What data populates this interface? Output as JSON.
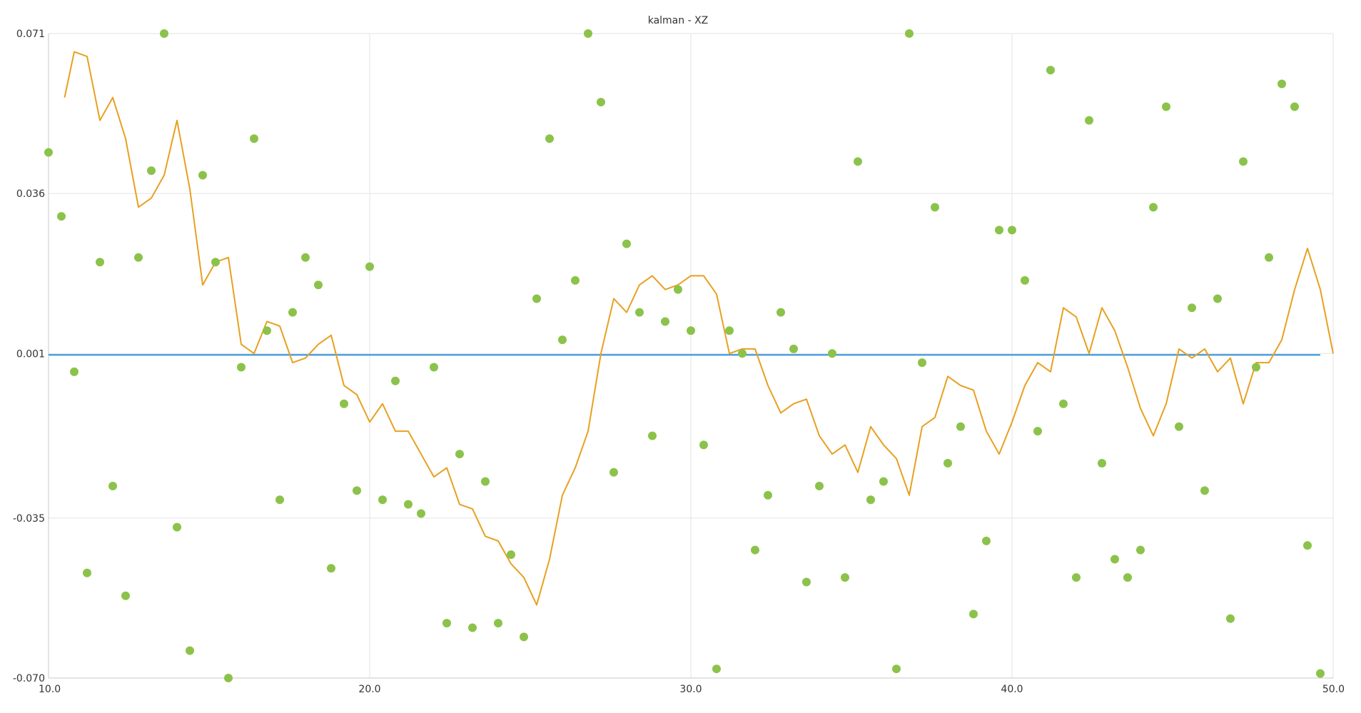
{
  "chart_data": {
    "type": "scatter",
    "title": "kalman - XZ",
    "xlabel": "",
    "ylabel": "",
    "xlim": [
      10.0,
      50.0
    ],
    "ylim": [
      -0.07,
      0.071
    ],
    "x_ticks": [
      10.0,
      20.0,
      30.0,
      40.0,
      50.0
    ],
    "x_tick_labels": [
      "10.0",
      "20.0",
      "30.0",
      "40.0",
      "50.0"
    ],
    "y_ticks": [
      0.071,
      0.036,
      0.001,
      -0.035,
      -0.07
    ],
    "y_tick_labels": [
      "0.071",
      "0.036",
      "0.001",
      "-0.035",
      "-0.070"
    ],
    "grid": true,
    "legend": "none",
    "colors": {
      "measurements": "#8bc34a",
      "filtered": "#e8a020",
      "reference": "#2a8fd8"
    },
    "series": [
      {
        "kind": "scatter",
        "x": [
          10.0,
          10.4,
          10.8,
          11.2,
          11.6,
          12.0,
          12.4,
          12.8,
          13.2,
          13.6,
          14.0,
          14.4,
          14.8,
          15.2,
          15.6,
          16.0,
          16.4,
          16.8,
          17.2,
          17.6,
          18.0,
          18.4,
          18.8,
          19.2,
          19.6,
          20.0,
          20.4,
          20.8,
          21.2,
          21.6,
          22.0,
          22.4,
          22.8,
          23.2,
          23.6,
          24.0,
          24.4,
          24.8,
          25.2,
          25.6,
          26.0,
          26.4,
          26.8,
          27.2,
          27.6,
          28.0,
          28.4,
          28.8,
          29.2,
          29.6,
          30.0,
          30.4,
          30.8,
          31.2,
          31.6,
          32.0,
          32.4,
          32.8,
          33.2,
          33.6,
          34.0,
          34.4,
          34.8,
          35.2,
          35.6,
          36.0,
          36.4,
          36.8,
          37.2,
          37.6,
          38.0,
          38.4,
          38.8,
          39.2,
          39.6,
          40.0,
          40.4,
          40.8,
          41.2,
          41.6,
          42.0,
          42.4,
          42.8,
          43.2,
          43.6,
          44.0,
          44.4,
          44.8,
          45.2,
          45.6,
          46.0,
          46.4,
          46.8,
          47.2,
          47.6,
          48.0,
          48.4,
          48.8,
          49.2,
          49.6
        ],
        "y": [
          0.045,
          0.031,
          -0.003,
          -0.047,
          0.021,
          -0.028,
          -0.052,
          0.022,
          0.041,
          0.071,
          -0.037,
          -0.064,
          0.04,
          0.021,
          -0.07,
          -0.002,
          0.048,
          0.006,
          -0.031,
          0.01,
          0.022,
          0.016,
          -0.046,
          -0.01,
          -0.029,
          0.02,
          -0.031,
          -0.005,
          -0.032,
          -0.034,
          -0.002,
          -0.058,
          -0.021,
          -0.059,
          -0.027,
          -0.058,
          -0.043,
          -0.061,
          0.013,
          0.048,
          0.004,
          0.017,
          0.071,
          0.056,
          -0.025,
          0.025,
          0.01,
          -0.017,
          0.008,
          0.015,
          0.006,
          -0.019,
          -0.068,
          0.006,
          0.001,
          -0.042,
          -0.03,
          0.01,
          0.002,
          -0.049,
          -0.028,
          0.001,
          -0.048,
          0.043,
          -0.031,
          -0.027,
          -0.068,
          0.071,
          -0.001,
          0.033,
          -0.023,
          -0.015,
          -0.056,
          -0.04,
          0.028,
          0.028,
          0.017,
          -0.016,
          0.063,
          -0.01,
          -0.048,
          0.052,
          -0.023,
          -0.044,
          -0.048,
          -0.042,
          0.033,
          0.055,
          -0.015,
          0.011,
          -0.029,
          0.013,
          -0.057,
          0.043,
          -0.002,
          0.022,
          0.06,
          0.055,
          -0.041,
          -0.069
        ]
      },
      {
        "kind": "line",
        "x": [
          10.5,
          10.8,
          11.2,
          11.6,
          12.0,
          12.4,
          12.8,
          13.2,
          13.6,
          14.0,
          14.4,
          14.8,
          15.2,
          15.6,
          16.0,
          16.4,
          16.8,
          17.2,
          17.6,
          18.0,
          18.4,
          18.8,
          19.2,
          19.6,
          20.0,
          20.4,
          20.8,
          21.2,
          21.6,
          22.0,
          22.4,
          22.8,
          23.2,
          23.6,
          24.0,
          24.4,
          24.8,
          25.2,
          25.6,
          26.0,
          26.4,
          26.8,
          27.2,
          27.6,
          28.0,
          28.4,
          28.8,
          29.2,
          29.6,
          30.0,
          30.4,
          30.8,
          31.2,
          31.6,
          32.0,
          32.4,
          32.8,
          33.2,
          33.6,
          34.0,
          34.4,
          34.8,
          35.2,
          35.6,
          36.0,
          36.4,
          36.8,
          37.2,
          37.6,
          38.0,
          38.4,
          38.8,
          39.2,
          39.6,
          40.0,
          40.4,
          40.8,
          41.2,
          41.6,
          42.0,
          42.4,
          42.8,
          43.2,
          43.6,
          44.0,
          44.4,
          44.8,
          45.2,
          45.6,
          46.0,
          46.4,
          46.8,
          47.2,
          47.6,
          48.0,
          48.4,
          48.8,
          49.2,
          49.6,
          50.0
        ],
        "y": [
          0.057,
          0.067,
          0.066,
          0.052,
          0.057,
          0.048,
          0.033,
          0.035,
          0.04,
          0.052,
          0.037,
          0.016,
          0.021,
          0.022,
          0.003,
          0.001,
          0.008,
          0.007,
          -0.001,
          0.0,
          0.003,
          0.005,
          -0.006,
          -0.008,
          -0.014,
          -0.01,
          -0.016,
          -0.016,
          -0.021,
          -0.026,
          -0.024,
          -0.032,
          -0.033,
          -0.039,
          -0.04,
          -0.045,
          -0.048,
          -0.054,
          -0.044,
          -0.03,
          -0.024,
          -0.016,
          0.001,
          0.013,
          0.01,
          0.016,
          0.018,
          0.015,
          0.016,
          0.018,
          0.018,
          0.014,
          0.001,
          0.002,
          0.002,
          -0.006,
          -0.012,
          -0.01,
          -0.009,
          -0.017,
          -0.021,
          -0.019,
          -0.025,
          -0.015,
          -0.019,
          -0.022,
          -0.03,
          -0.015,
          -0.013,
          -0.004,
          -0.006,
          -0.007,
          -0.016,
          -0.021,
          -0.014,
          -0.006,
          -0.001,
          -0.003,
          0.011,
          0.009,
          0.001,
          0.011,
          0.006,
          -0.002,
          -0.011,
          -0.017,
          -0.01,
          0.002,
          0.0,
          0.002,
          -0.003,
          0.0,
          -0.01,
          -0.001,
          -0.001,
          0.004,
          0.015,
          0.024,
          0.015,
          0.001
        ]
      },
      {
        "kind": "line",
        "x": [
          10.0,
          49.6
        ],
        "y": [
          0.0007,
          0.0007
        ]
      }
    ]
  }
}
